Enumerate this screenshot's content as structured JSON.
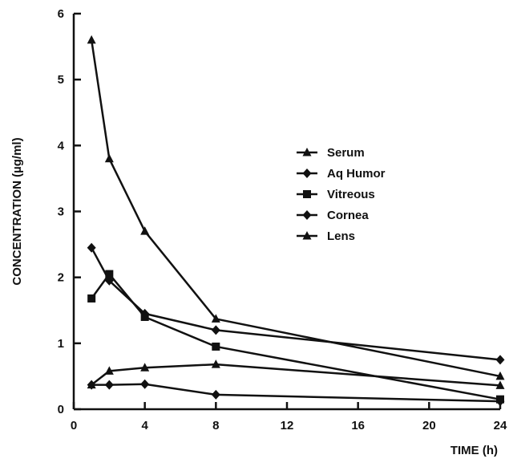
{
  "chart_data": {
    "type": "line",
    "xlabel": "TIME (h)",
    "ylabel": "CONCENTRATION (µg/ml)",
    "xlim": [
      0,
      24
    ],
    "ylim": [
      0,
      6
    ],
    "x_ticks": [
      "0",
      "4",
      "8",
      "12",
      "16",
      "20",
      "24"
    ],
    "x_tick_values": [
      0,
      4,
      8,
      12,
      16,
      20,
      24
    ],
    "y_ticks": [
      "0",
      "1",
      "2",
      "3",
      "4",
      "5",
      "6"
    ],
    "y_tick_values": [
      0,
      1,
      2,
      3,
      4,
      5,
      6
    ],
    "grid": false,
    "legend_position": "center-right",
    "series": [
      {
        "name": "Serum",
        "marker": "triangle",
        "x": [
          1,
          2,
          4,
          8,
          24
        ],
        "y": [
          5.6,
          3.8,
          2.7,
          1.37,
          0.5
        ]
      },
      {
        "name": "Aq Humor",
        "marker": "diamond",
        "x": [
          1,
          2,
          4,
          8,
          24
        ],
        "y": [
          2.45,
          1.95,
          1.45,
          1.2,
          0.75
        ]
      },
      {
        "name": "Vitreous",
        "marker": "square",
        "x": [
          1,
          2,
          4,
          8,
          24
        ],
        "y": [
          1.68,
          2.05,
          1.4,
          0.95,
          0.15
        ]
      },
      {
        "name": "Cornea",
        "marker": "diamond",
        "x": [
          1,
          2,
          4,
          8,
          24
        ],
        "y": [
          0.37,
          0.37,
          0.38,
          0.22,
          0.12
        ]
      },
      {
        "name": "Lens",
        "marker": "triangle",
        "x": [
          1,
          2,
          4,
          8,
          24
        ],
        "y": [
          0.37,
          0.58,
          0.63,
          0.68,
          0.36
        ]
      }
    ]
  }
}
